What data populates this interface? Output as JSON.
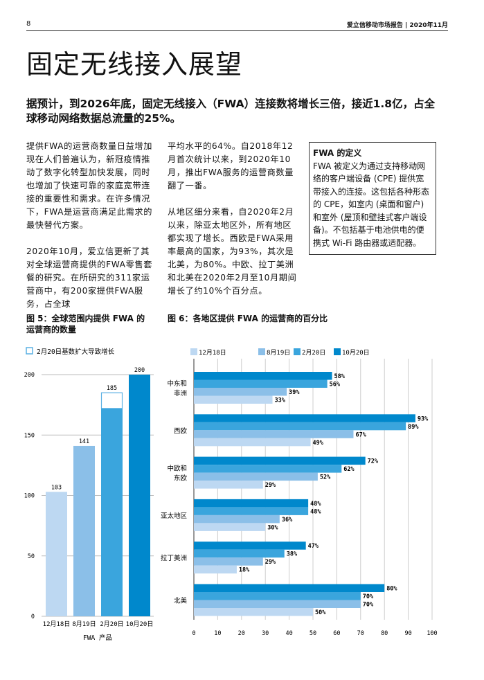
{
  "header": {
    "page_number": "8",
    "publication": "爱立信移动市场报告 | 2020年11月"
  },
  "title": "固定无线接入展望",
  "lead": "据预计，到2026年底，固定无线接入（FWA）连接数将增长三倍，接近1.8亿，占全球移动网络数据总流量的25%。",
  "column1": [
    "提供FWA的运营商数量日益增加现在人们普遍认为，新冠疫情推动了数字化转型加快发展，同时也增加了快速可靠的家庭宽带连接的重要性和需求。在许多情况下，FWA是运营商满足此需求的最快替代方案。",
    "2020年10月，爱立信更新了其对全球运营商提供的FWA零售套餐的研究。在所研究的311家运营商中，有200家提供FWA服务，占全球"
  ],
  "column2": [
    "平均水平的64%。自2018年12月首次统计以来，到2020年10月，推出FWA服务的运营商数量翻了一番。",
    "从地区细分来看，自2020年2月以来，除亚太地区外，所有地区都实现了增长。西欧是FWA采用率最高的国家，为93%，其次是北美，为80%。中欧、拉丁美洲和北美在2020年2月至10月期间增长了约10%个百分点。"
  ],
  "definition": {
    "title": "FWA 的定义",
    "text": "FWA 被定义为通过支持移动网络的客户端设备 (CPE) 提供宽带接入的连接。这包括各种形态的 CPE，如室内 (桌面和窗户) 和室外 (屋顶和壁挂式客户端设备)。不包括基于电池供电的便携式 Wi-Fi 路由器或适配器。"
  },
  "chart_data": [
    {
      "type": "bar",
      "title": "图 5：全球范围内提供 FWA 的运营商的数量",
      "categories": [
        "12月18日",
        "8月19日",
        "2月20日",
        "10月20日"
      ],
      "values": [
        103,
        141,
        185,
        200
      ],
      "base_filled": [
        103,
        141,
        172,
        200
      ],
      "legend": [
        "2月20日基数扩大导致增长"
      ],
      "xlabel": "FWA 产品",
      "ylim": [
        0,
        200
      ],
      "yticks": [
        0,
        50,
        100,
        150,
        200
      ],
      "colors": [
        "#bdd8f2",
        "#8bbfe8",
        "#3aa5dd",
        "#0088cc"
      ]
    },
    {
      "type": "bar",
      "orientation": "horizontal",
      "title": "图 6：各地区提供 FWA 的运营商的百分比",
      "categories": [
        "中东和\n非洲",
        "西欧",
        "中欧和\n东欧",
        "亚太地区",
        "拉丁美洲",
        "北美"
      ],
      "series": [
        {
          "name": "12月18日",
          "color": "#bdd8f2",
          "values": [
            33,
            49,
            29,
            30,
            18,
            50
          ]
        },
        {
          "name": "8月19日",
          "color": "#8bbfe8",
          "values": [
            39,
            67,
            52,
            36,
            29,
            70
          ]
        },
        {
          "name": "2月20日",
          "color": "#3aa5dd",
          "values": [
            56,
            89,
            62,
            48,
            38,
            70
          ]
        },
        {
          "name": "10月20日",
          "color": "#0088cc",
          "values": [
            58,
            93,
            72,
            48,
            47,
            80
          ]
        }
      ],
      "xlim": [
        0,
        100
      ],
      "xticks": [
        0,
        10,
        20,
        30,
        40,
        50,
        60,
        70,
        80,
        90,
        100
      ],
      "legend_position": "top"
    }
  ]
}
